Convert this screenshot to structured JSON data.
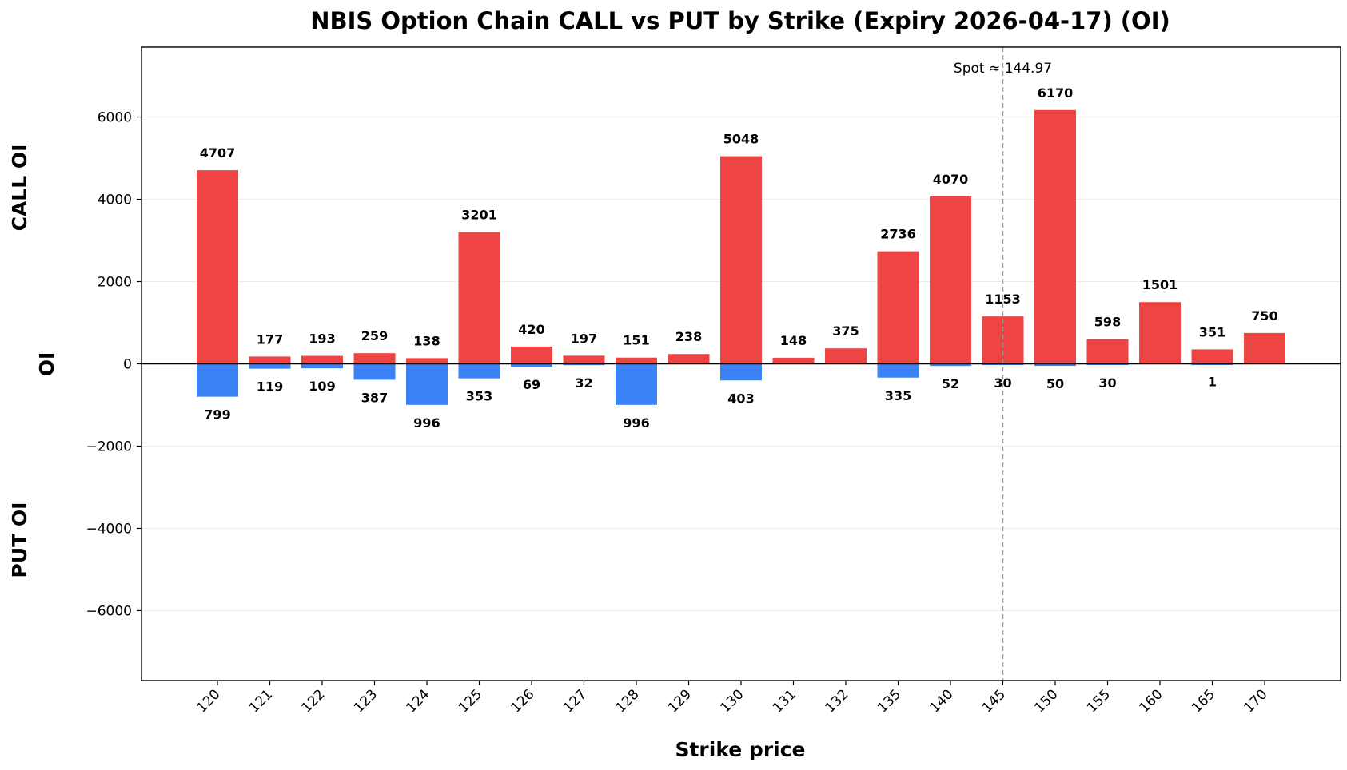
{
  "chart_data": {
    "type": "bar",
    "title": "NBIS Option Chain CALL vs PUT by Strike (Expiry 2026-04-17) (OI)",
    "xlabel": "Strike price",
    "ylabel": "OI",
    "ylabel_top": "CALL OI",
    "ylabel_bottom": "PUT OI",
    "categories": [
      "120",
      "121",
      "122",
      "123",
      "124",
      "125",
      "126",
      "127",
      "128",
      "129",
      "130",
      "131",
      "132",
      "135",
      "140",
      "145",
      "150",
      "155",
      "160",
      "165",
      "170"
    ],
    "series": [
      {
        "name": "CALL",
        "color": "#ef4444",
        "values": [
          4707,
          177,
          193,
          259,
          138,
          3201,
          420,
          197,
          151,
          238,
          5048,
          148,
          375,
          2736,
          4070,
          1153,
          6170,
          598,
          1501,
          351,
          750
        ]
      },
      {
        "name": "PUT",
        "color": "#3b82f6",
        "values": [
          799,
          119,
          109,
          387,
          996,
          353,
          69,
          32,
          996,
          0,
          403,
          0,
          0,
          335,
          52,
          30,
          50,
          30,
          0,
          1,
          0
        ]
      }
    ],
    "put_labels": [
      "799",
      "119",
      "109",
      "387",
      "996",
      "353",
      "69",
      "32",
      "996",
      "",
      "403",
      "",
      "",
      "335",
      "52",
      "30",
      "50",
      "30",
      "",
      "1",
      ""
    ],
    "ylim": [
      -7700,
      7700
    ],
    "yticks": [
      -6000,
      -4000,
      -2000,
      0,
      2000,
      4000,
      6000
    ],
    "ytick_labels": [
      "−6000",
      "−4000",
      "−2000",
      "0",
      "2000",
      "4000",
      "6000"
    ],
    "spot": {
      "label": "Spot ≈ 144.97",
      "category": "145"
    },
    "grid": "horizontal"
  }
}
